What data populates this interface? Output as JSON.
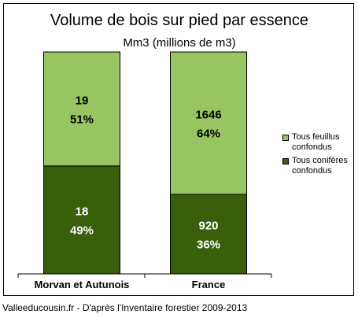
{
  "chart_data": {
    "type": "bar",
    "stacked": true,
    "normalized": true,
    "title": "Volume de bois sur pied par essence",
    "subtitle": "Mm3 (millions de m3)",
    "categories": [
      "Morvan et Autunois",
      "France"
    ],
    "series": [
      {
        "name": "Tous conifères confondus",
        "color": "#3a5f0b",
        "values": [
          18,
          920
        ],
        "labels": [
          "49%",
          "36%"
        ]
      },
      {
        "name": "Tous feuillus confondus",
        "color": "#99c462",
        "values": [
          19,
          1646
        ],
        "labels": [
          "51%",
          "64%"
        ]
      }
    ],
    "ylim": [
      0,
      100
    ],
    "grid": false,
    "legend_position": "right"
  },
  "legend": [
    {
      "label": "Tous feuillus confondus",
      "color": "#99c462"
    },
    {
      "label": "Tous conifères confondus",
      "color": "#3a5f0b"
    }
  ],
  "source": "Valleeducousin.fr - D'après l'Inventaire forestier 2009-2013"
}
